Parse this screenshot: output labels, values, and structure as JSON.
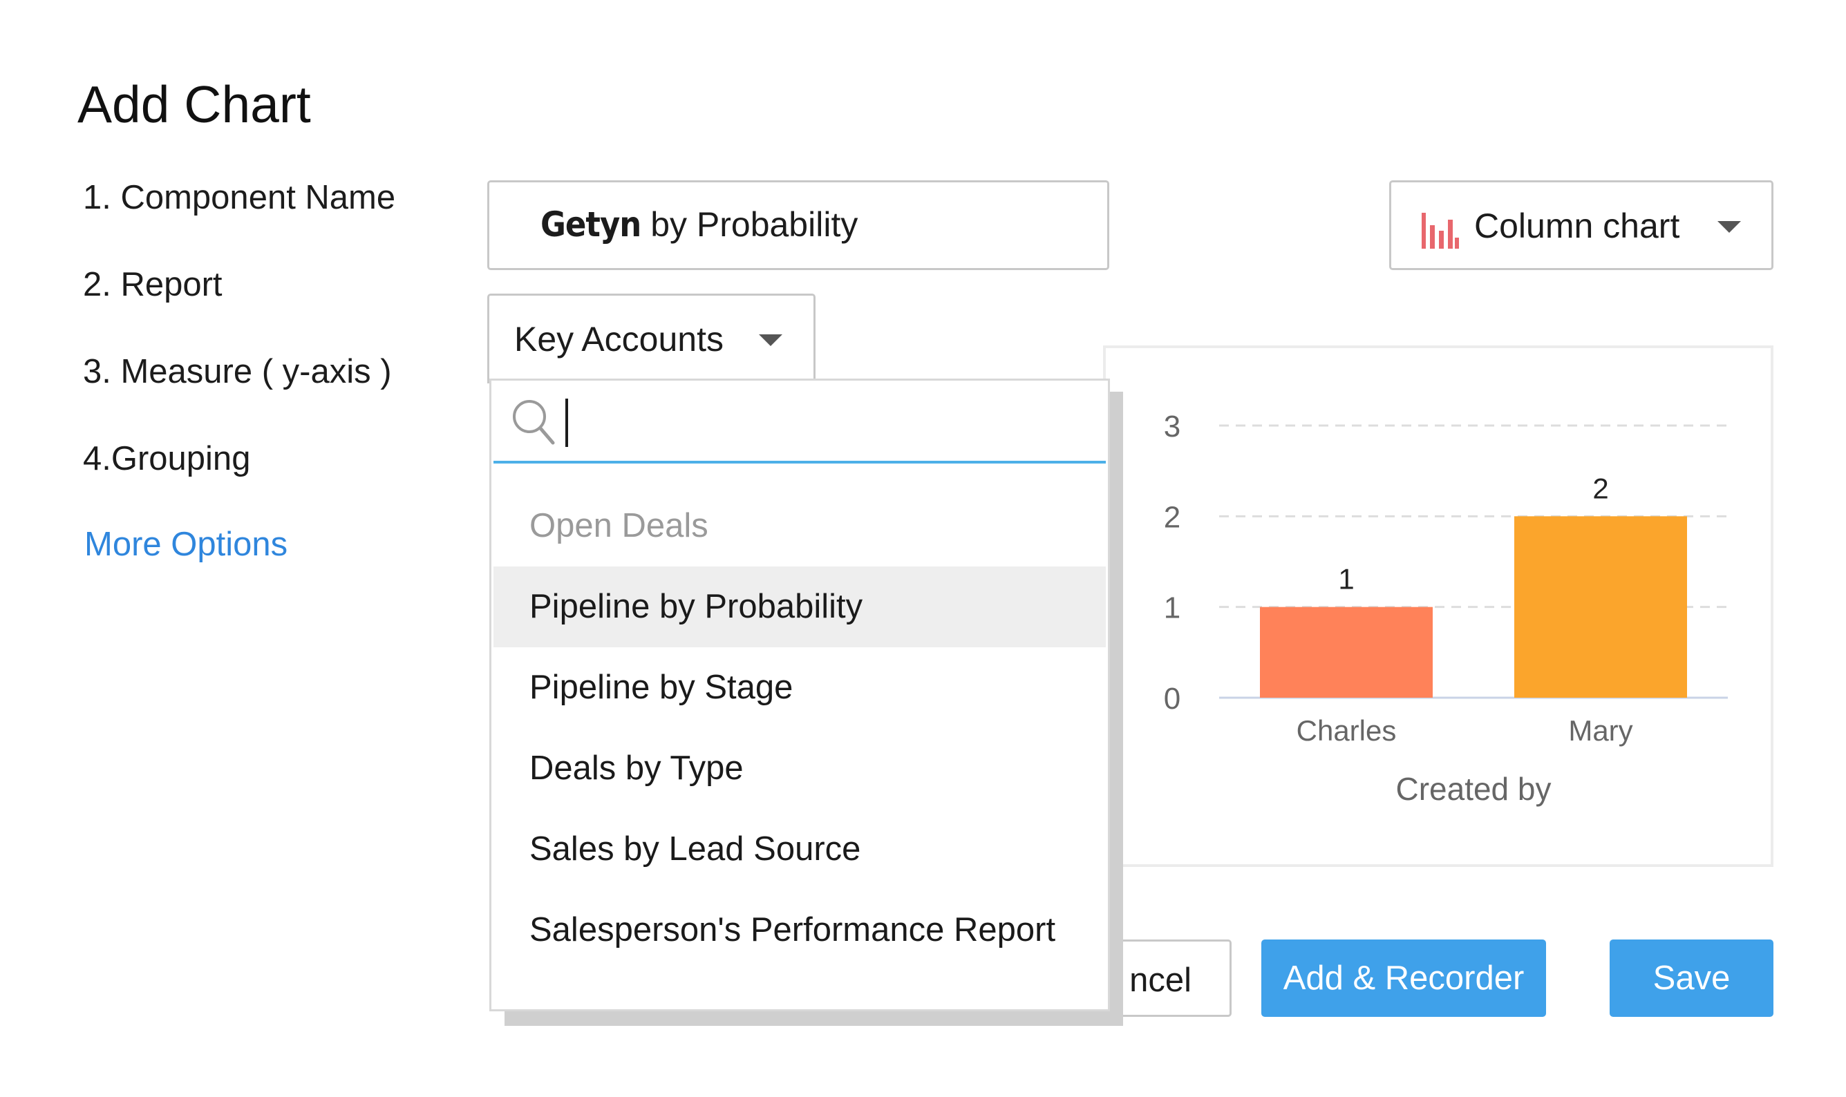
{
  "dialog": {
    "title": "Add Chart"
  },
  "steps": [
    {
      "label": "1. Component Name"
    },
    {
      "label": "2. Report"
    },
    {
      "label": "3. Measure ( y-axis )"
    },
    {
      "label": "4.Grouping"
    }
  ],
  "more_options": "More Options",
  "component_name": {
    "value_bold": "Getyn",
    "value_rest": " by Probability"
  },
  "chart_type": {
    "label": "Column chart",
    "icon": "column-chart-icon",
    "icon_color": "#e8676d"
  },
  "report": {
    "selected": "Key Accounts"
  },
  "report_dropdown": {
    "search_icon": "search-icon",
    "search_value": "",
    "group_label": "Open Deals",
    "options": [
      "Pipeline by Probability",
      "Pipeline by Stage",
      "Deals by Type",
      "Sales by Lead Source",
      "Salesperson's Performance Report"
    ],
    "highlighted": "Pipeline by Probability"
  },
  "chart_data": {
    "type": "bar",
    "categories": [
      "Charles",
      "Mary"
    ],
    "values": [
      1,
      2
    ],
    "data_labels": [
      "1",
      "2"
    ],
    "bar_colors": [
      "#ff8259",
      "#fba52c"
    ],
    "xlabel": "Created by",
    "ylabel": "",
    "ylim": [
      0,
      3
    ],
    "yticks": [
      "0",
      "1",
      "2",
      "3"
    ],
    "grid": "dashed horizontal"
  },
  "buttons": {
    "cancel": "ncel",
    "add_recorder": "Add & Recorder",
    "save": "Save"
  }
}
